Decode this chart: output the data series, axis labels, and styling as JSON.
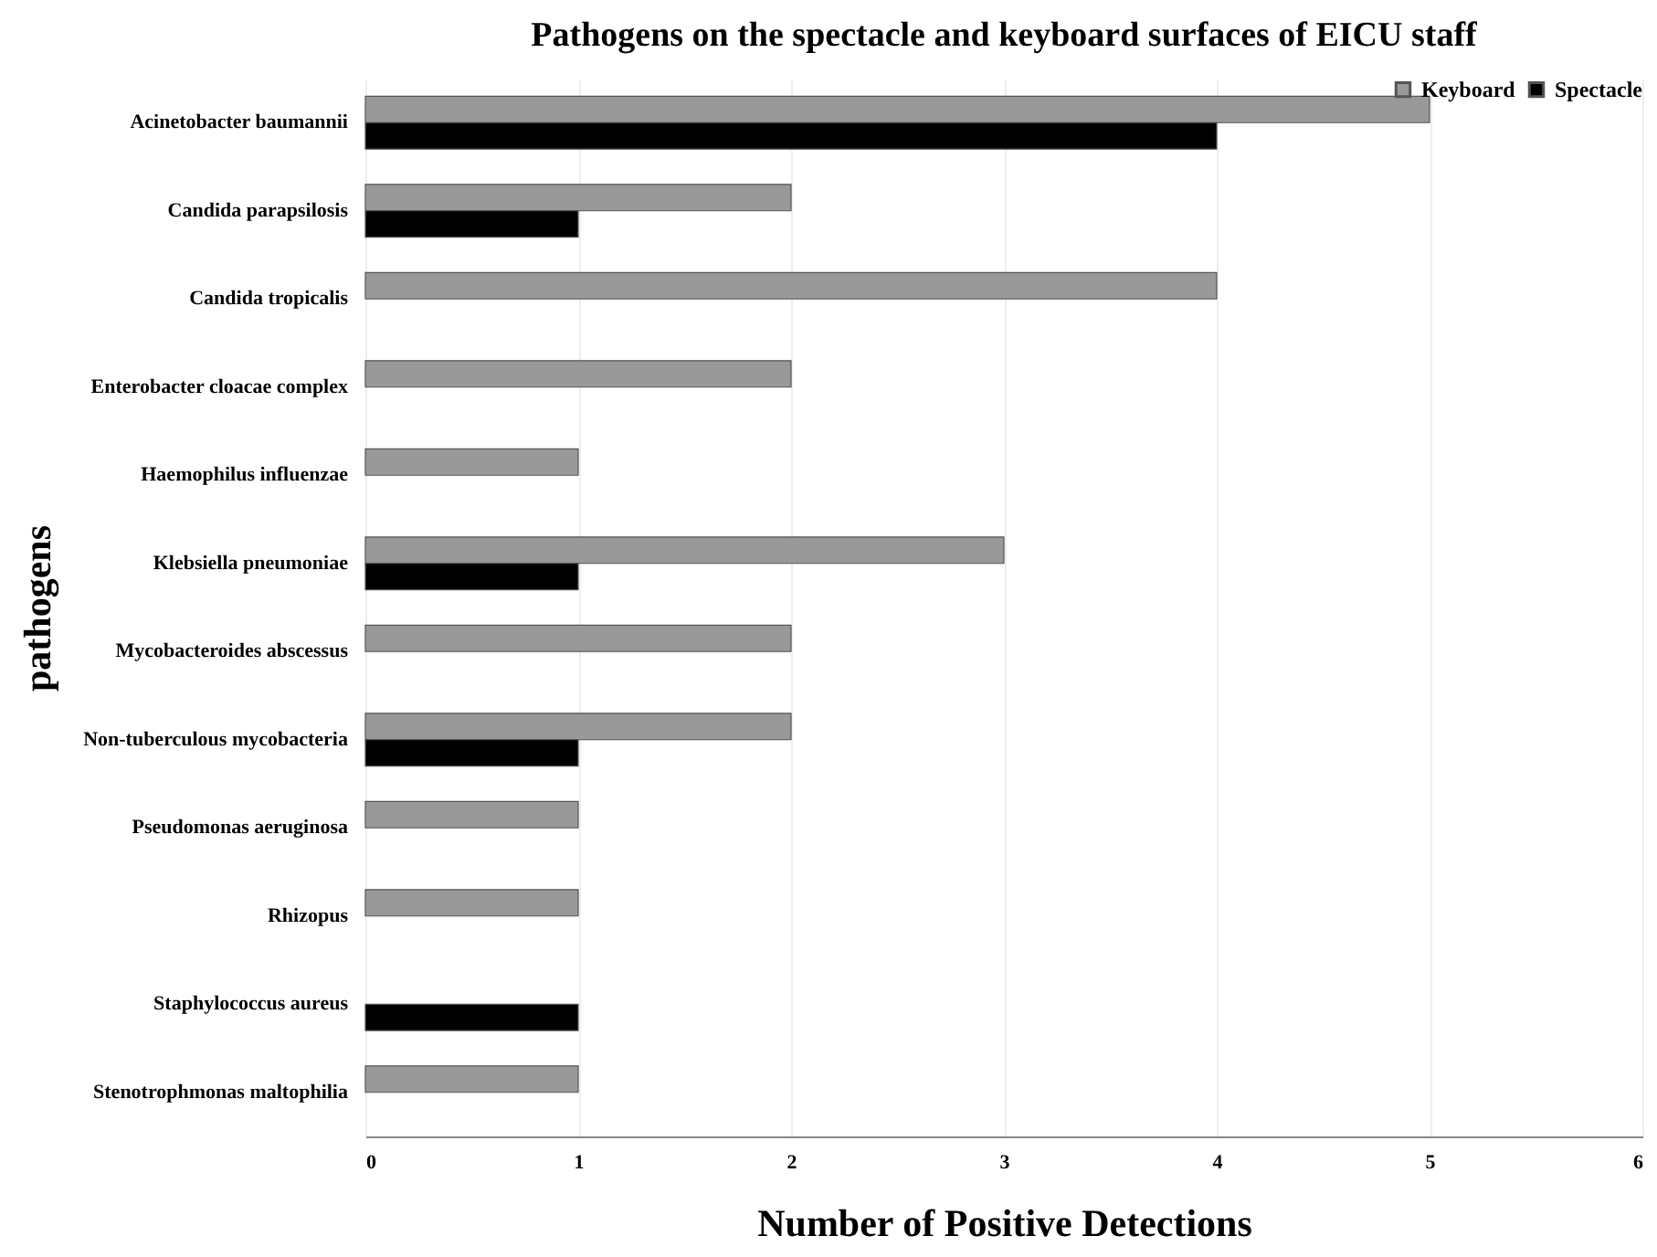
{
  "chart_data": {
    "type": "bar",
    "orientation": "horizontal",
    "title": "Pathogens on the spectacle and keyboard surfaces of EICU staff",
    "xlabel": "Number of Positive Detections",
    "ylabel": "pathogens",
    "categories": [
      "Acinetobacter baumannii",
      "Candida parapsilosis",
      "Candida tropicalis",
      "Enterobacter cloacae complex",
      "Haemophilus influenzae",
      "Klebsiella pneumoniae",
      "Mycobacteroides abscessus",
      "Non-tuberculous mycobacteria",
      "Pseudomonas aeruginosa",
      "Rhizopus",
      "Staphylococcus aureus",
      "Stenotrophmonas maltophilia"
    ],
    "series": [
      {
        "name": "Keyboard",
        "color": "#999999",
        "values": [
          5,
          2,
          4,
          2,
          1,
          3,
          2,
          2,
          1,
          1,
          null,
          1
        ]
      },
      {
        "name": "Spectacle",
        "color": "#000000",
        "values": [
          4,
          1,
          null,
          null,
          null,
          1,
          null,
          1,
          null,
          null,
          1,
          null
        ]
      }
    ],
    "xlim": [
      0,
      6
    ],
    "xticks": [
      0,
      1,
      2,
      3,
      4,
      5,
      6
    ],
    "grid": "x",
    "legend": "top right"
  }
}
